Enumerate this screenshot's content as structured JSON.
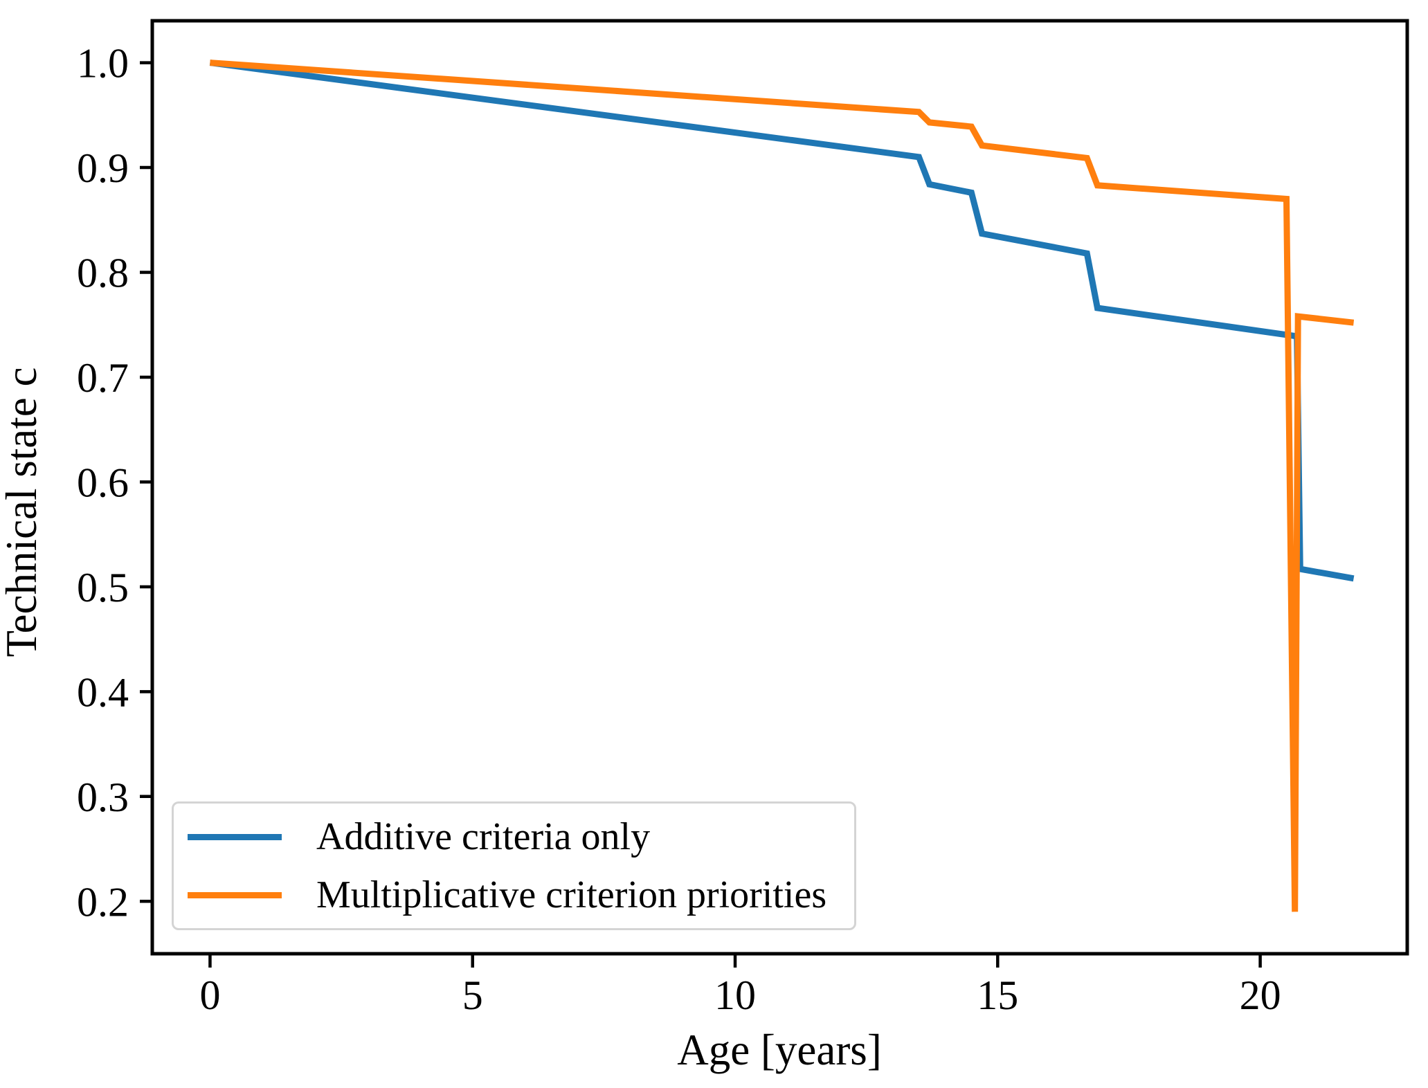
{
  "figure": {
    "background": "#ffffff"
  },
  "chart_data": {
    "type": "line",
    "title": "",
    "xlabel": "Age [years]",
    "ylabel": "Technical state c",
    "xlim": [
      -1.1,
      22.8
    ],
    "ylim": [
      0.15,
      1.04
    ],
    "x_ticks": [
      0,
      5,
      10,
      15,
      20
    ],
    "x_tick_labels": [
      "0",
      "5",
      "10",
      "15",
      "20"
    ],
    "y_ticks": [
      0.2,
      0.3,
      0.4,
      0.5,
      0.6,
      0.7,
      0.8,
      0.9,
      1.0
    ],
    "y_tick_labels": [
      "0.2",
      "0.3",
      "0.4",
      "0.5",
      "0.6",
      "0.7",
      "0.8",
      "0.9",
      "1.0"
    ],
    "grid": false,
    "legend_position": "lower left",
    "axis_color": "#000000",
    "series": [
      {
        "name": "Additive criteria only",
        "color": "#1f77b4",
        "points": [
          [
            0,
            1.0
          ],
          [
            13.5,
            0.91
          ],
          [
            13.7,
            0.884
          ],
          [
            14.5,
            0.876
          ],
          [
            14.7,
            0.837
          ],
          [
            16.7,
            0.818
          ],
          [
            16.9,
            0.766
          ],
          [
            20.7,
            0.739
          ],
          [
            20.76,
            0.517
          ],
          [
            21.78,
            0.508
          ]
        ]
      },
      {
        "name": "Multiplicative criterion priorities",
        "color": "#ff7f0e",
        "points": [
          [
            0,
            1.0
          ],
          [
            13.5,
            0.953
          ],
          [
            13.7,
            0.943
          ],
          [
            14.5,
            0.939
          ],
          [
            14.7,
            0.921
          ],
          [
            16.7,
            0.909
          ],
          [
            16.9,
            0.883
          ],
          [
            20.5,
            0.87
          ],
          [
            20.66,
            0.19
          ],
          [
            20.72,
            0.758
          ],
          [
            21.78,
            0.752
          ]
        ]
      }
    ]
  }
}
